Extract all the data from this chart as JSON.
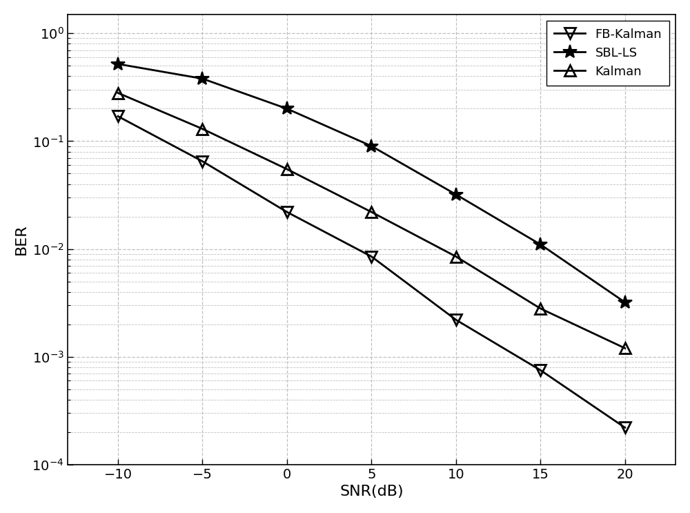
{
  "snr": [
    -10,
    -5,
    0,
    5,
    10,
    15,
    20
  ],
  "FB_Kalman": [
    0.17,
    0.065,
    0.022,
    0.0085,
    0.0022,
    0.00075,
    0.00022
  ],
  "SBL_LS": [
    0.52,
    0.38,
    0.2,
    0.09,
    0.032,
    0.011,
    0.0032
  ],
  "Kalman": [
    0.28,
    0.13,
    0.055,
    0.022,
    0.0085,
    0.0028,
    0.0012
  ],
  "xlabel": "SNR(dB)",
  "ylabel": "BER",
  "xlim": [
    -13,
    23
  ],
  "ylim": [
    0.0001,
    1.5
  ],
  "xticks": [
    -10,
    -5,
    0,
    5,
    10,
    15,
    20
  ],
  "legend": [
    "FB-Kalman",
    "SBL-LS",
    "Kalman"
  ],
  "line_color": "#000000",
  "bg_color": "#ffffff",
  "grid_color": "#c0c0c0",
  "marker_FB_Kalman": "v",
  "marker_SBL_LS": "*",
  "marker_Kalman": "^",
  "markersize_v": 12,
  "markersize_star": 15,
  "linewidth": 2.0,
  "fontsize_label": 16,
  "fontsize_tick": 14,
  "fontsize_legend": 13
}
